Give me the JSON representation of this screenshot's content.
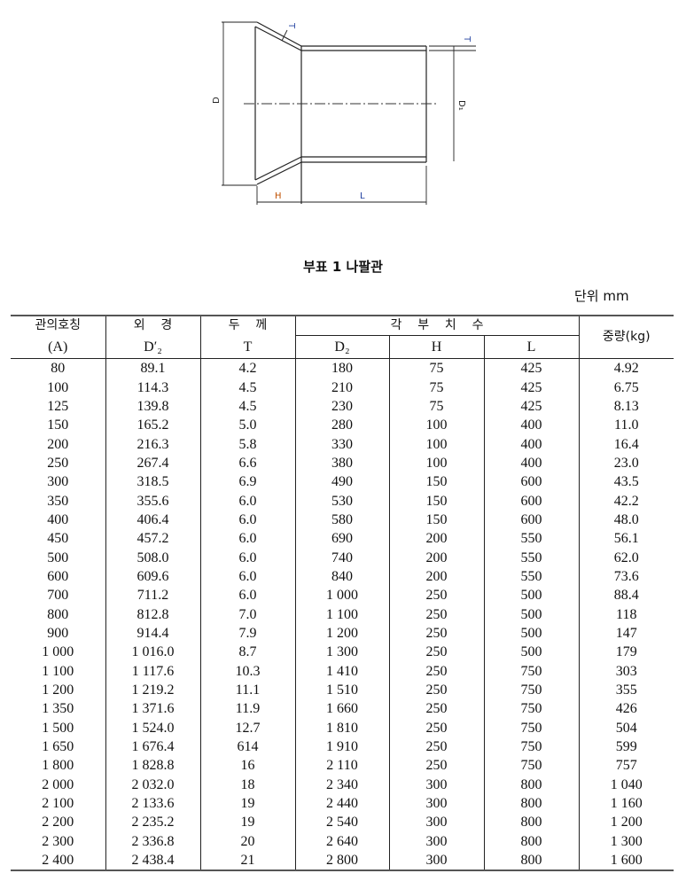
{
  "drawing": {
    "labels": {
      "D": "D",
      "D1": "D₁",
      "T_flare": "T",
      "T_pipe": "T",
      "H": "H",
      "L": "L"
    },
    "colors": {
      "line": "#222222",
      "H": "#c05000",
      "L": "#1f3f9f",
      "T": "#1f3f9f"
    }
  },
  "title": "부표 1 나팔관",
  "unit": "단위 mm",
  "table": {
    "headers": {
      "nominal": "관의호칭",
      "nominal_sub": "(A)",
      "outer": "외    경",
      "outer_sub": "D′₂",
      "thickness": "두    께",
      "thickness_sub": "T",
      "dims": "각    부    치    수",
      "d2": "D₂",
      "h": "H",
      "l": "L",
      "weight": "중량(kg)"
    },
    "rows": [
      [
        "80",
        "89.1",
        "4.2",
        "180",
        "75",
        "425",
        "4.92"
      ],
      [
        "100",
        "114.3",
        "4.5",
        "210",
        "75",
        "425",
        "6.75"
      ],
      [
        "125",
        "139.8",
        "4.5",
        "230",
        "75",
        "425",
        "8.13"
      ],
      [
        "150",
        "165.2",
        "5.0",
        "280",
        "100",
        "400",
        "11.0"
      ],
      [
        "200",
        "216.3",
        "5.8",
        "330",
        "100",
        "400",
        "16.4"
      ],
      [
        "250",
        "267.4",
        "6.6",
        "380",
        "100",
        "400",
        "23.0"
      ],
      [
        "300",
        "318.5",
        "6.9",
        "490",
        "150",
        "600",
        "43.5"
      ],
      [
        "350",
        "355.6",
        "6.0",
        "530",
        "150",
        "600",
        "42.2"
      ],
      [
        "400",
        "406.4",
        "6.0",
        "580",
        "150",
        "600",
        "48.0"
      ],
      [
        "450",
        "457.2",
        "6.0",
        "690",
        "200",
        "550",
        "56.1"
      ],
      [
        "500",
        "508.0",
        "6.0",
        "740",
        "200",
        "550",
        "62.0"
      ],
      [
        "600",
        "609.6",
        "6.0",
        "840",
        "200",
        "550",
        "73.6"
      ],
      [
        "700",
        "711.2",
        "6.0",
        "1 000",
        "250",
        "500",
        "88.4"
      ],
      [
        "800",
        "812.8",
        "7.0",
        "1 100",
        "250",
        "500",
        "118"
      ],
      [
        "900",
        "914.4",
        "7.9",
        "1 200",
        "250",
        "500",
        "147"
      ],
      [
        "1 000",
        "1 016.0",
        "8.7",
        "1 300",
        "250",
        "500",
        "179"
      ],
      [
        "1 100",
        "1 117.6",
        "10.3",
        "1 410",
        "250",
        "750",
        "303"
      ],
      [
        "1 200",
        "1 219.2",
        "11.1",
        "1 510",
        "250",
        "750",
        "355"
      ],
      [
        "1 350",
        "1 371.6",
        "11.9",
        "1 660",
        "250",
        "750",
        "426"
      ],
      [
        "1 500",
        "1 524.0",
        "12.7",
        "1 810",
        "250",
        "750",
        "504"
      ],
      [
        "1 650",
        "1 676.4",
        "614",
        "1 910",
        "250",
        "750",
        "599"
      ],
      [
        "1 800",
        "1 828.8",
        "16",
        "2 110",
        "250",
        "750",
        "757"
      ],
      [
        "2 000",
        "2 032.0",
        "18",
        "2 340",
        "300",
        "800",
        "1 040"
      ],
      [
        "2 100",
        "2 133.6",
        "19",
        "2 440",
        "300",
        "800",
        "1 160"
      ],
      [
        "2 200",
        "2 235.2",
        "19",
        "2 540",
        "300",
        "800",
        "1 200"
      ],
      [
        "2 300",
        "2 336.8",
        "20",
        "2 640",
        "300",
        "800",
        "1 300"
      ],
      [
        "2 400",
        "2 438.4",
        "21",
        "2 800",
        "300",
        "800",
        "1 600"
      ]
    ]
  }
}
